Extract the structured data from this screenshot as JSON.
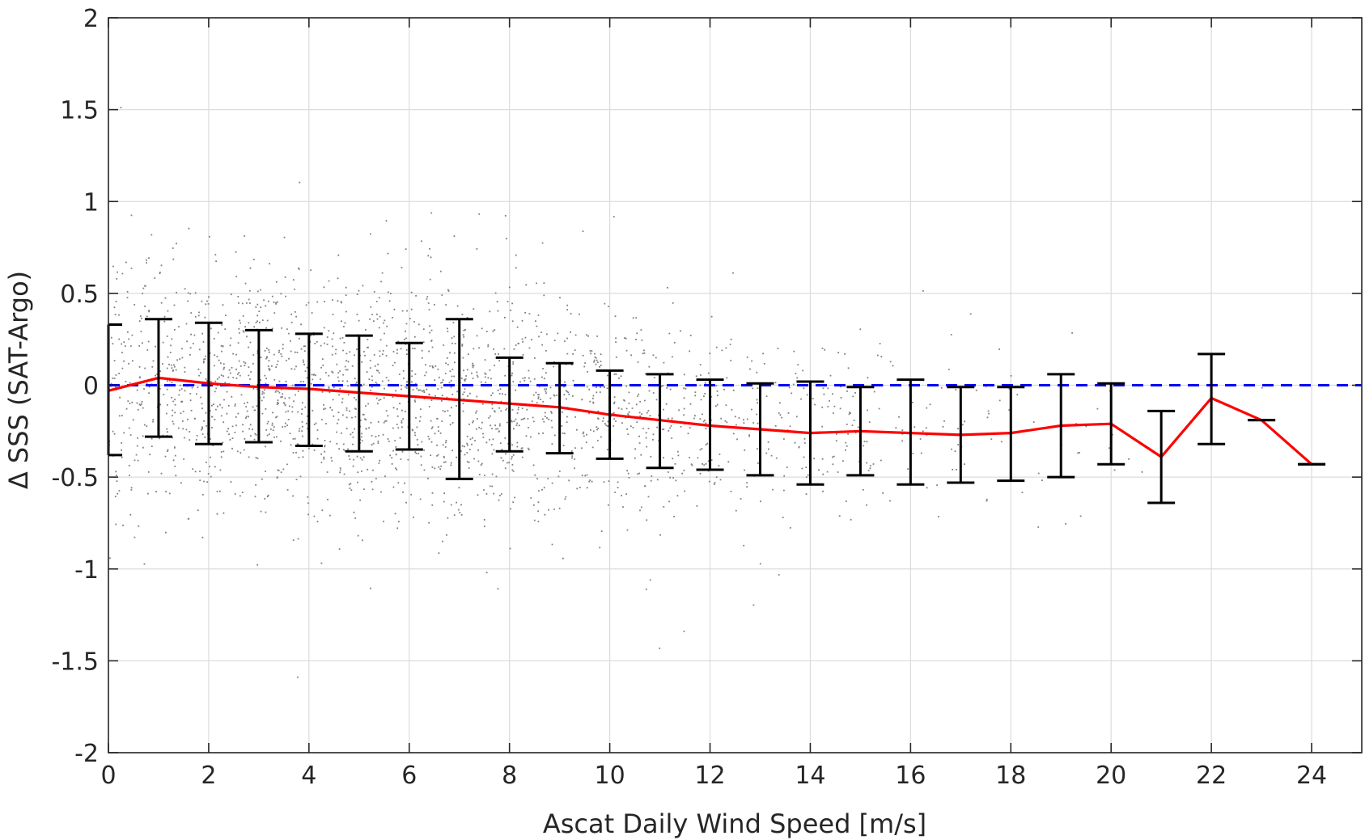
{
  "chart_data": {
    "type": "scatter",
    "xlabel": "Ascat Daily Wind Speed [m/s]",
    "ylabel": "Δ SSS (SAT-Argo)",
    "xlim": [
      0,
      25
    ],
    "ylim": [
      -2,
      2
    ],
    "xticks": [
      0,
      2,
      4,
      6,
      8,
      10,
      12,
      14,
      16,
      18,
      20,
      22,
      24
    ],
    "yticks": [
      -2,
      -1.5,
      -1,
      -0.5,
      0,
      0.5,
      1,
      1.5,
      2
    ],
    "grid": true,
    "reference_line": {
      "y": 0,
      "color": "#0000ff",
      "style": "dashed"
    },
    "colors": {
      "scatter": "#808080",
      "mean_line": "#ff0000",
      "error_bars": "#000000",
      "reference": "#0000ff"
    },
    "mean_line": {
      "x": [
        0,
        1,
        2,
        3,
        4,
        5,
        6,
        7,
        8,
        9,
        10,
        11,
        12,
        13,
        14,
        15,
        16,
        17,
        18,
        19,
        20,
        21,
        22,
        23,
        24
      ],
      "y": [
        -0.03,
        0.04,
        0.01,
        -0.01,
        -0.02,
        -0.04,
        -0.06,
        -0.08,
        -0.1,
        -0.12,
        -0.16,
        -0.19,
        -0.22,
        -0.24,
        -0.26,
        -0.25,
        -0.26,
        -0.27,
        -0.26,
        -0.22,
        -0.21,
        -0.39,
        -0.07,
        -0.19,
        -0.43
      ]
    },
    "error_bars": {
      "x": [
        0,
        1,
        2,
        3,
        4,
        5,
        6,
        7,
        8,
        9,
        10,
        11,
        12,
        13,
        14,
        15,
        16,
        17,
        18,
        19,
        20,
        21,
        22,
        23,
        24
      ],
      "upper": [
        0.33,
        0.36,
        0.34,
        0.3,
        0.28,
        0.27,
        0.23,
        0.36,
        0.15,
        0.12,
        0.08,
        0.06,
        0.03,
        0.01,
        0.02,
        -0.01,
        0.03,
        -0.01,
        -0.01,
        0.06,
        0.01,
        -0.14,
        0.17,
        -0.19,
        -0.43
      ],
      "lower": [
        -0.38,
        -0.28,
        -0.32,
        -0.31,
        -0.33,
        -0.36,
        -0.35,
        -0.51,
        -0.36,
        -0.37,
        -0.4,
        -0.45,
        -0.46,
        -0.49,
        -0.54,
        -0.49,
        -0.54,
        -0.53,
        -0.52,
        -0.5,
        -0.43,
        -0.64,
        -0.32,
        -0.19,
        -0.43
      ]
    },
    "scatter_summary": {
      "description_values_x": [
        0,
        1,
        2,
        3,
        4,
        5,
        6,
        7,
        8,
        9,
        10,
        11,
        12,
        13,
        14,
        15,
        16,
        17,
        18,
        19,
        20,
        21,
        22,
        23,
        24
      ],
      "density_relative": [
        0.55,
        0.8,
        1.0,
        1.0,
        1.0,
        1.0,
        0.95,
        0.9,
        0.8,
        0.7,
        0.6,
        0.5,
        0.42,
        0.34,
        0.26,
        0.2,
        0.15,
        0.1,
        0.07,
        0.04,
        0.025,
        0.012,
        0.006,
        0.003,
        0.002
      ],
      "spread": [
        0.32,
        0.33,
        0.33,
        0.32,
        0.32,
        0.32,
        0.31,
        0.31,
        0.3,
        0.29,
        0.28,
        0.27,
        0.26,
        0.25,
        0.25,
        0.24,
        0.24,
        0.24,
        0.23,
        0.23,
        0.22,
        0.22,
        0.2,
        0.2,
        0.2
      ]
    }
  }
}
